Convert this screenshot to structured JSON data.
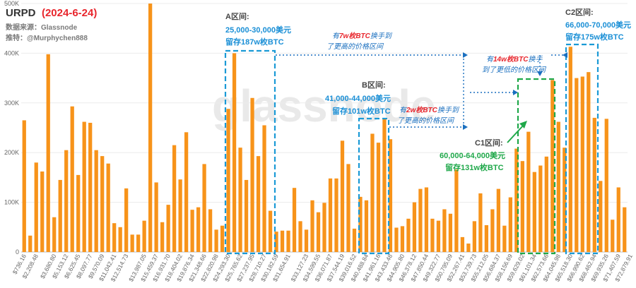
{
  "chart_data": {
    "type": "bar",
    "title": "URPD",
    "date": "(2024-6-24)",
    "source": "数据来源：Glassnode",
    "author": "推特：@Murphychen888",
    "watermark": "glassnode",
    "ylim": [
      0,
      500000
    ],
    "y_ticks": [
      {
        "value": 0,
        "label": "0"
      },
      {
        "value": 100000,
        "label": "100K"
      },
      {
        "value": 200000,
        "label": "200K"
      },
      {
        "value": 300000,
        "label": "300K"
      },
      {
        "value": 400000,
        "label": "400K"
      },
      {
        "value": 500000,
        "label": "500K"
      }
    ],
    "bar_color": "#f7931a",
    "x_tick_labels": [
      {
        "index": 0,
        "label": "$736.16"
      },
      {
        "index": 2,
        "label": "$2,208.48"
      },
      {
        "index": 5,
        "label": "$3,680.80"
      },
      {
        "index": 7,
        "label": "$5,153.12"
      },
      {
        "index": 9,
        "label": "$6,625.45"
      },
      {
        "index": 11,
        "label": "$8,097.77"
      },
      {
        "index": 13,
        "label": "$9,570.09"
      },
      {
        "index": 15,
        "label": "$11,042.41"
      },
      {
        "index": 17,
        "label": "$12,514.73"
      },
      {
        "index": 20,
        "label": "$13,987.05"
      },
      {
        "index": 22,
        "label": "$15,459.37"
      },
      {
        "index": 24,
        "label": "$16,931.70"
      },
      {
        "index": 26,
        "label": "$18,404.02"
      },
      {
        "index": 28,
        "label": "$19,876.34"
      },
      {
        "index": 30,
        "label": "$21,348.66"
      },
      {
        "index": 32,
        "label": "$22,820.98"
      },
      {
        "index": 34,
        "label": "$24,293.30"
      },
      {
        "index": 36,
        "label": "$25,765.62"
      },
      {
        "index": 38,
        "label": "$27,237.95"
      },
      {
        "index": 40,
        "label": "$28,710.27"
      },
      {
        "index": 42,
        "label": "$30,182.59"
      },
      {
        "index": 44,
        "label": "$31,654.91"
      },
      {
        "index": 47,
        "label": "$33,127.23"
      },
      {
        "index": 49,
        "label": "$34,599.55"
      },
      {
        "index": 51,
        "label": "$36,071.87"
      },
      {
        "index": 53,
        "label": "$37,544.19"
      },
      {
        "index": 55,
        "label": "$39,016.52"
      },
      {
        "index": 57,
        "label": "$40,488.84"
      },
      {
        "index": 59,
        "label": "$41,961.16"
      },
      {
        "index": 61,
        "label": "$43,433.48"
      },
      {
        "index": 63,
        "label": "$44,905.80"
      },
      {
        "index": 65,
        "label": "$46,378.12"
      },
      {
        "index": 67,
        "label": "$47,850.44"
      },
      {
        "index": 69,
        "label": "$49,322.77"
      },
      {
        "index": 71,
        "label": "$50,795.09"
      },
      {
        "index": 73,
        "label": "$52,267.41"
      },
      {
        "index": 75,
        "label": "$53,739.73"
      },
      {
        "index": 77,
        "label": "$55,212.05"
      },
      {
        "index": 79,
        "label": "$56,684.37"
      },
      {
        "index": 81,
        "label": "$58,156.69"
      },
      {
        "index": 83,
        "label": "$59,629.02"
      },
      {
        "index": 85,
        "label": "$61,101.34"
      },
      {
        "index": 87,
        "label": "$62,573.66"
      },
      {
        "index": 89,
        "label": "$64,045.98"
      },
      {
        "index": 91,
        "label": "$65,518.30"
      },
      {
        "index": 93,
        "label": "$66,990.62"
      },
      {
        "index": 95,
        "label": "$68,462.94"
      },
      {
        "index": 97,
        "label": "$69,935.26"
      },
      {
        "index": 99,
        "label": "$71,407.59"
      },
      {
        "index": 101,
        "label": "$72,879.91"
      }
    ],
    "values": [
      265000,
      33000,
      180000,
      162000,
      398000,
      70000,
      145000,
      205000,
      293000,
      155000,
      262000,
      260000,
      205000,
      193000,
      178000,
      58000,
      50000,
      128000,
      35000,
      35000,
      63000,
      505000,
      140000,
      60000,
      95000,
      215000,
      146000,
      241000,
      85000,
      90000,
      177000,
      86000,
      45000,
      53000,
      288000,
      400000,
      210000,
      145000,
      310000,
      193000,
      255000,
      83000,
      41000,
      43000,
      43000,
      129000,
      62000,
      45000,
      104000,
      80000,
      99000,
      148000,
      148000,
      224000,
      177000,
      47000,
      111000,
      104000,
      238000,
      220000,
      267000,
      227000,
      49000,
      52000,
      67000,
      100000,
      127000,
      130000,
      67000,
      63000,
      86000,
      77000,
      166000,
      30000,
      17000,
      62000,
      118000,
      54000,
      86000,
      127000,
      53000,
      110000,
      208000,
      183000,
      242000,
      161000,
      174000,
      192000,
      346000,
      262000,
      210000,
      413000,
      350000,
      353000,
      362000,
      270000,
      143000,
      268000,
      65000,
      130000,
      90000
    ]
  },
  "zones": {
    "a": {
      "name": "A区间:",
      "range": "25,000-30,000美元",
      "holding": "留存187w枚BTC"
    },
    "b": {
      "name": "B区间:",
      "range": "41,000-44,000美元",
      "holding": "留存101w枚BTC"
    },
    "c1": {
      "name": "C1区间:",
      "range": "60,000-64,000美元",
      "holding": "留存131w枚BTC"
    },
    "c2": {
      "name": "C2区间:",
      "range": "66,000-70,000美元",
      "holding": "留存175w枚BTC"
    }
  },
  "annotations": {
    "a_transfer": {
      "prefix": "有",
      "amount": "7w枚BTC",
      "suffix": "换手到",
      "line2": "了更高的价格区间"
    },
    "b_transfer": {
      "prefix": "有",
      "amount": "2w枚BTC",
      "suffix": "换手到",
      "line2": "了更高的价格区间"
    },
    "c2_transfer": {
      "prefix": "有",
      "amount": "14w枚BTC",
      "suffix": "换手",
      "line2": "到了更低的价格区间"
    }
  }
}
